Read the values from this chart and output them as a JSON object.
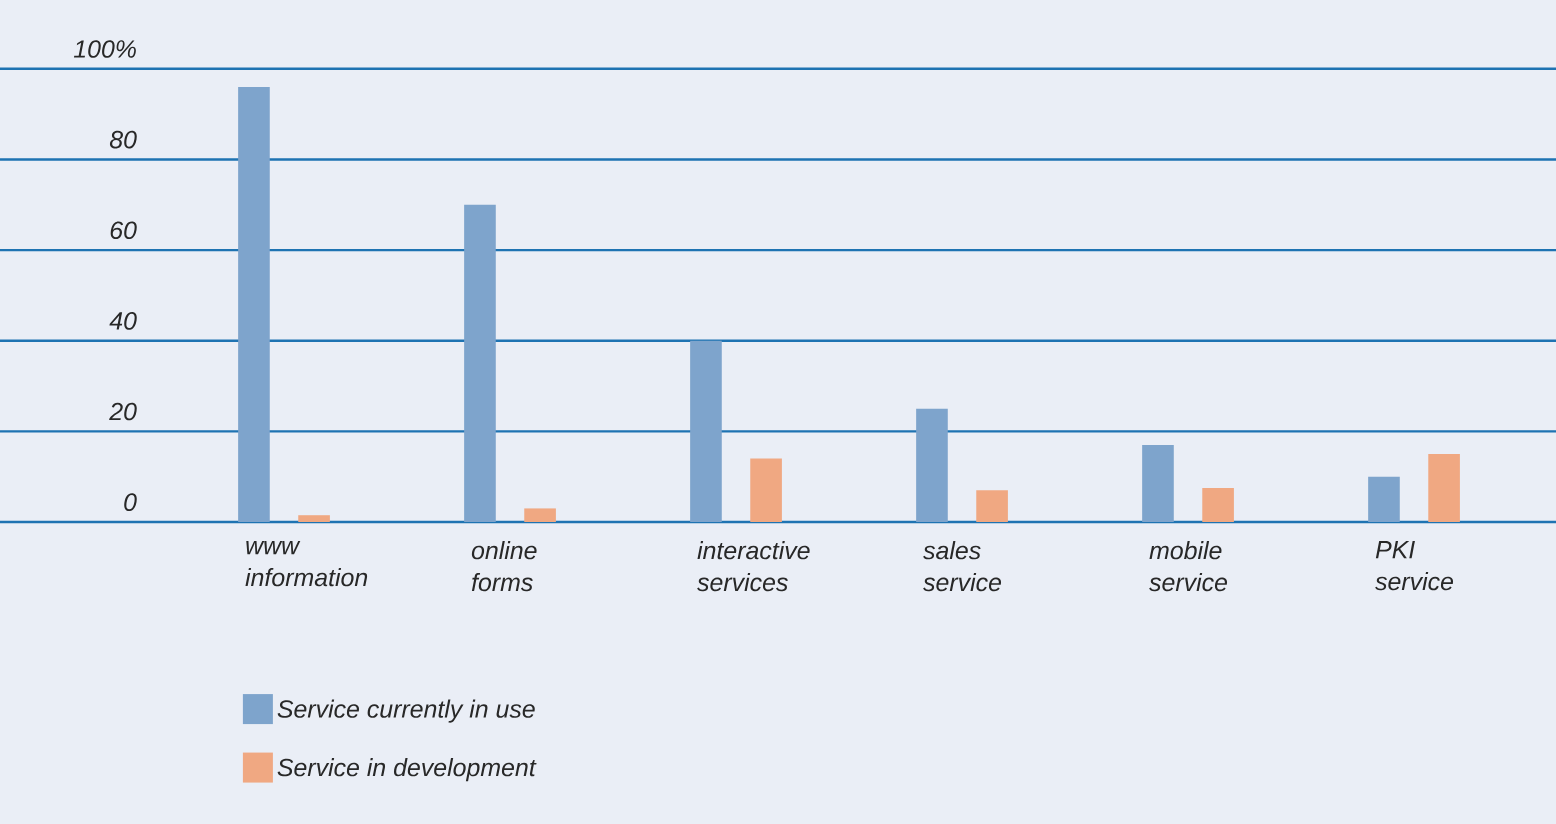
{
  "chart_data": {
    "type": "bar",
    "categories": [
      "www information",
      "online forms",
      "interactive services",
      "sales service",
      "mobile service",
      "PKI service"
    ],
    "series": [
      {
        "name": "Service currently in use",
        "color": "#7ea4cc",
        "values": [
          96,
          70,
          40,
          25,
          17,
          10
        ]
      },
      {
        "name": "Service in development",
        "color": "#f0a882",
        "values": [
          1.5,
          3,
          14,
          7,
          7.5,
          15
        ]
      }
    ],
    "ylim": [
      0,
      100
    ],
    "yticks": [
      0,
      20,
      40,
      60,
      80,
      {
        "value": 100,
        "label": "100%"
      }
    ],
    "grid": "y",
    "legend": "bottom left"
  }
}
